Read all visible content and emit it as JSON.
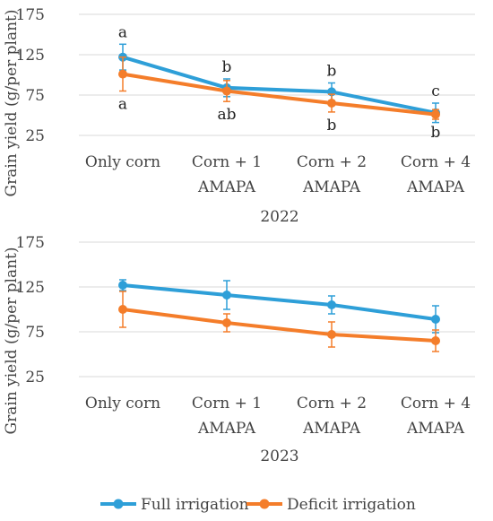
{
  "colors": {
    "full": "#2E9FD8",
    "deficit": "#F47D2A",
    "grid": "#D9D9D9",
    "text": "#444444"
  },
  "legend": {
    "full_label": "Full irrigation",
    "deficit_label": "Deficit irrigation"
  },
  "chart_data": [
    {
      "type": "line",
      "subtitle": "2022",
      "ylabel": "Grain yield (g/per plant)",
      "ylim": [
        25,
        175
      ],
      "yticks": [
        25,
        75,
        125,
        175
      ],
      "categories": [
        [
          "Only corn"
        ],
        [
          "Corn + 1",
          "AMAPA"
        ],
        [
          "Corn + 2",
          "AMAPA"
        ],
        [
          "Corn + 4",
          "AMAPA"
        ]
      ],
      "series": [
        {
          "name": "Full irrigation",
          "key": "full",
          "values": [
            122,
            84,
            79,
            53
          ],
          "error": [
            16,
            11,
            11,
            12
          ],
          "letters": [
            "a",
            "b",
            "b",
            "c"
          ]
        },
        {
          "name": "Deficit irrigation",
          "key": "deficit",
          "values": [
            101,
            80,
            65,
            51
          ],
          "error": [
            21,
            13,
            11,
            6
          ],
          "letters": [
            "a",
            "ab",
            "b",
            "b"
          ]
        }
      ]
    },
    {
      "type": "line",
      "subtitle": "2023",
      "ylabel": "Grain yield (g/per plant)",
      "ylim": [
        25,
        175
      ],
      "yticks": [
        25,
        75,
        125,
        175
      ],
      "categories": [
        [
          "Only corn"
        ],
        [
          "Corn + 1",
          "AMAPA"
        ],
        [
          "Corn + 2",
          "AMAPA"
        ],
        [
          "Corn + 4",
          "AMAPA"
        ]
      ],
      "series": [
        {
          "name": "Full irrigation",
          "key": "full",
          "values": [
            127,
            116,
            105,
            89
          ],
          "error": [
            6,
            16,
            10,
            15
          ],
          "letters": []
        },
        {
          "name": "Deficit irrigation",
          "key": "deficit",
          "values": [
            100,
            85,
            72,
            65
          ],
          "error": [
            20,
            10,
            14,
            12
          ],
          "letters": []
        }
      ]
    }
  ]
}
